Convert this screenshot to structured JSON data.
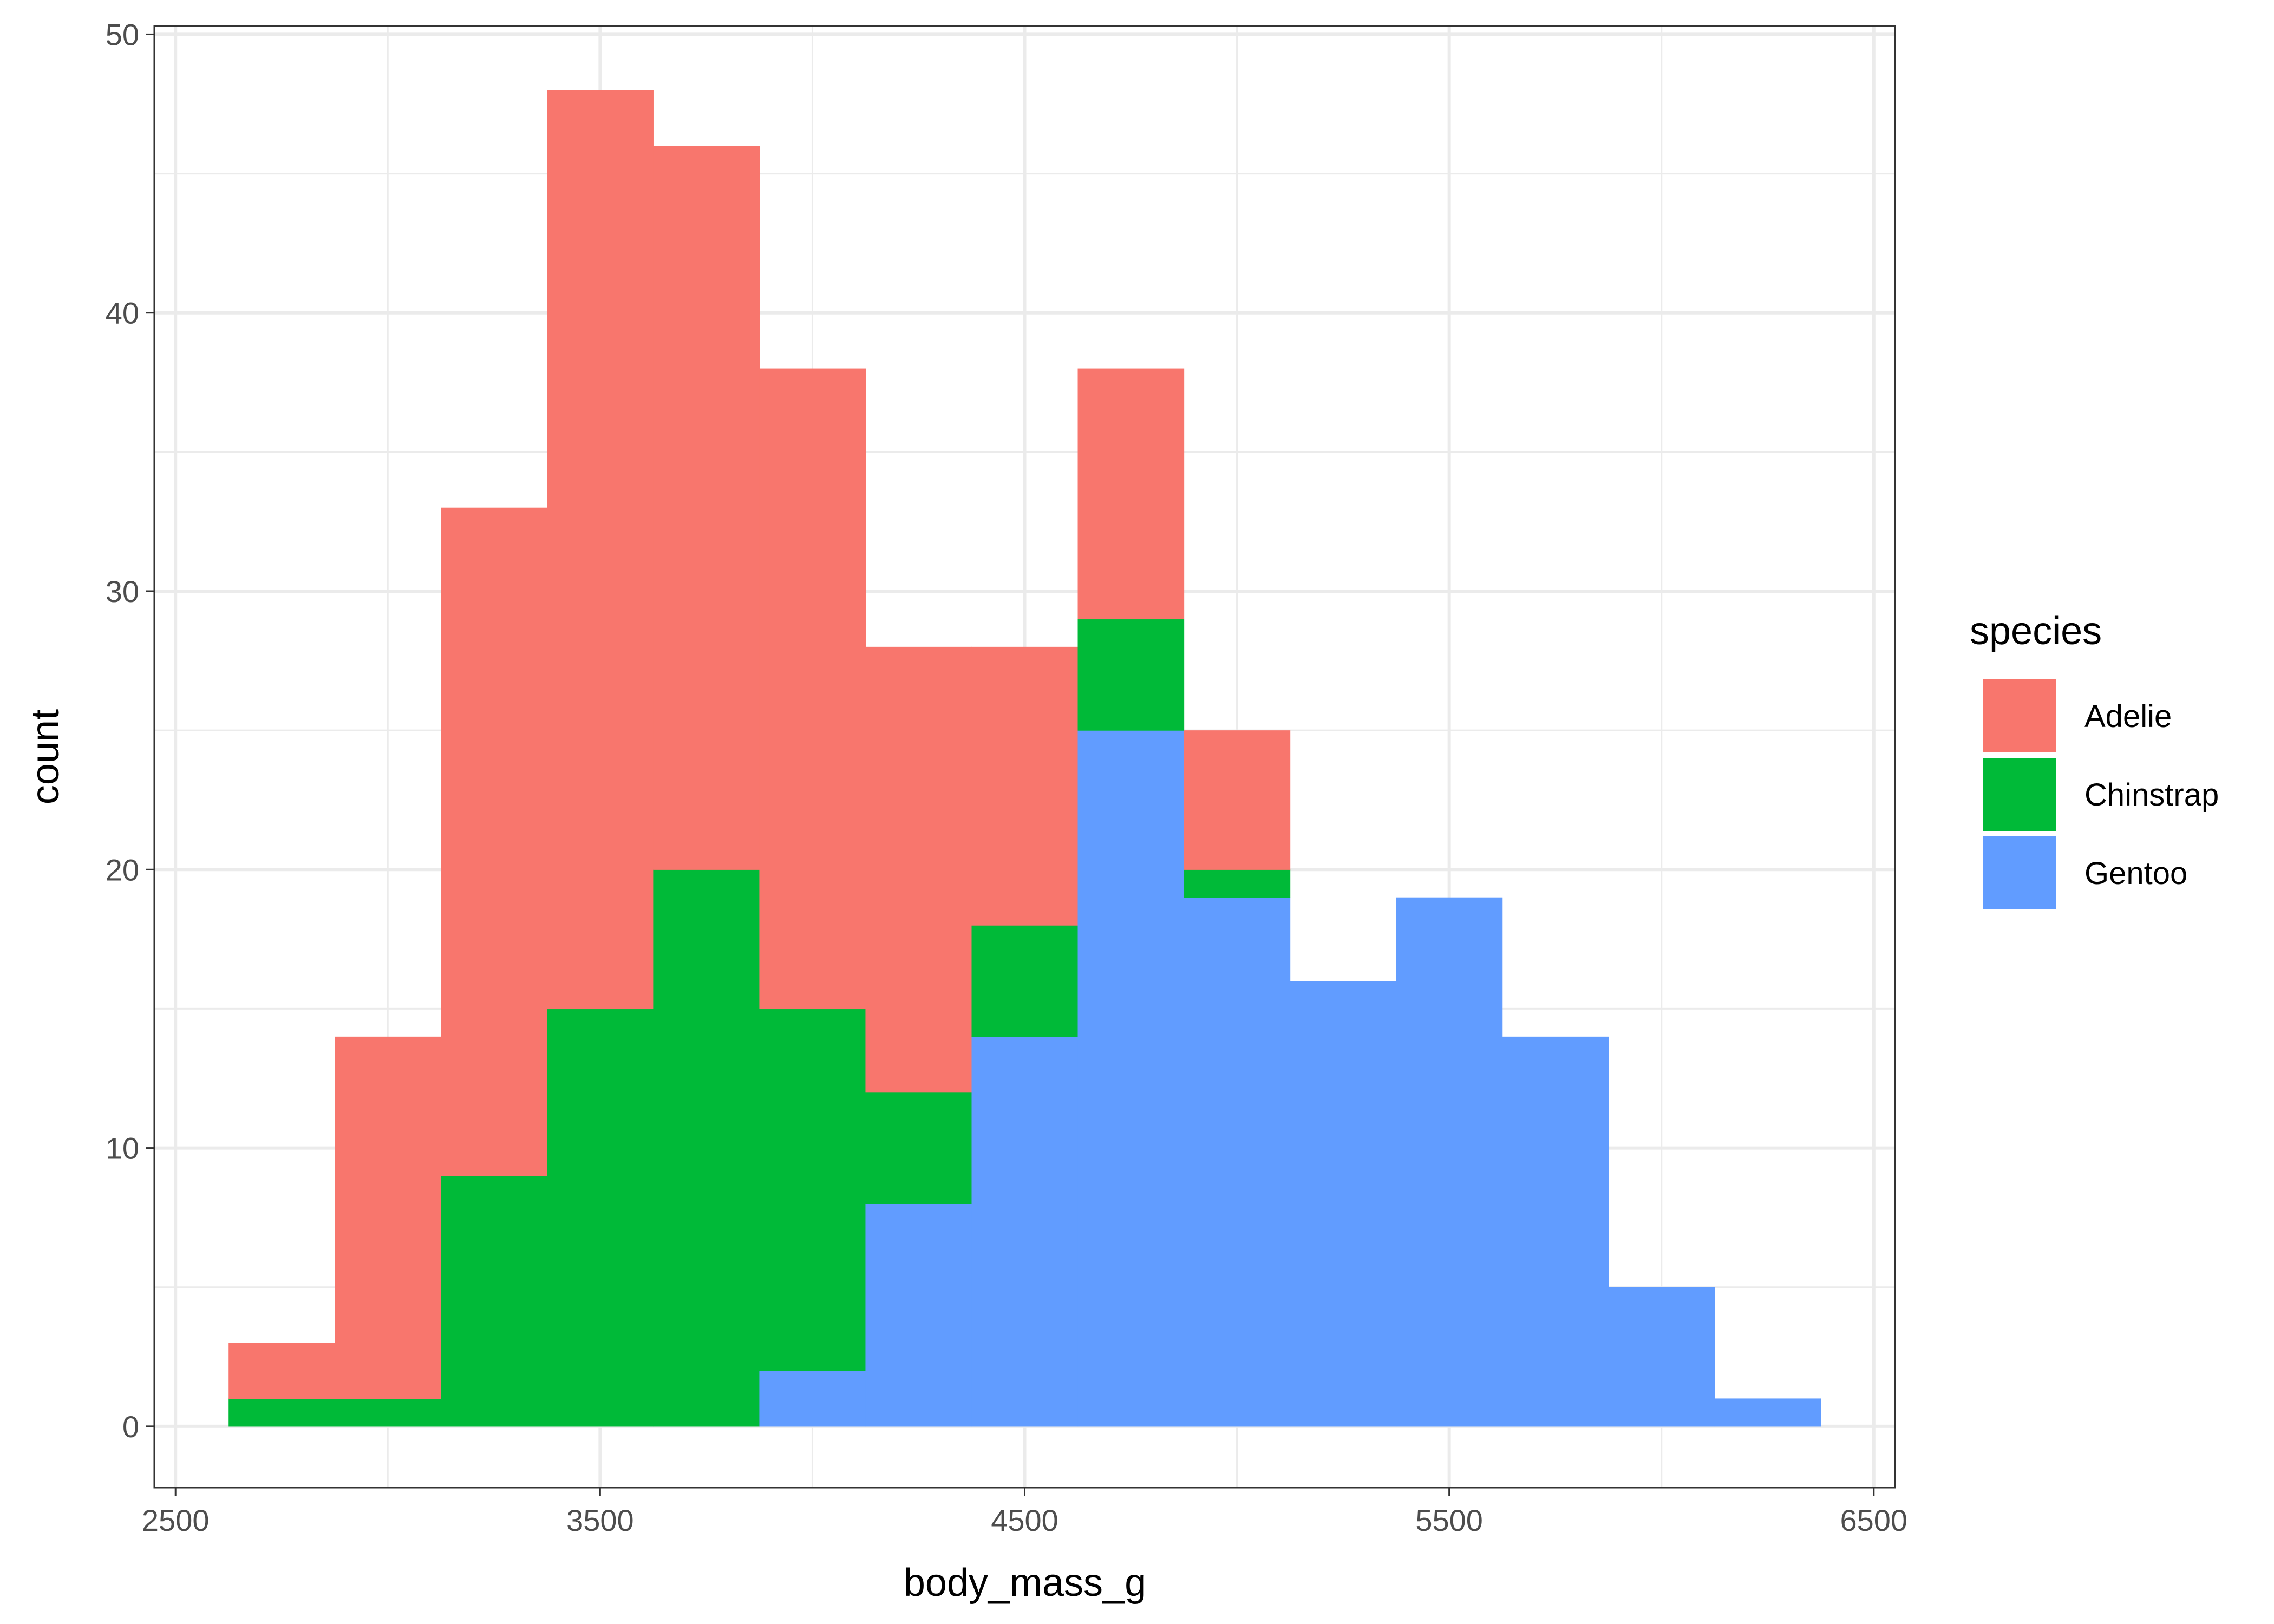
{
  "chart_data": {
    "type": "bar",
    "subtype": "stacked-histogram",
    "title": "",
    "xlabel": "body_mass_g",
    "ylabel": "count",
    "xlim": [
      2450,
      6550
    ],
    "ylim": [
      -2.2,
      50.3
    ],
    "xticks": [
      2500,
      3500,
      4500,
      5500,
      6500
    ],
    "yticks": [
      0,
      10,
      20,
      30,
      40,
      50
    ],
    "grid": true,
    "bin_edges": [
      2625,
      2875,
      3125,
      3375,
      3625,
      3875,
      4125,
      4375,
      4625,
      4875,
      5125,
      5375,
      5625,
      5875,
      6125,
      6375
    ],
    "stack_order_bottom_to_top": [
      "Gentoo",
      "Chinstrap",
      "Adelie"
    ],
    "legend": {
      "title": "species",
      "position": "right"
    },
    "series": [
      {
        "name": "Adelie",
        "color": "#F8766D",
        "values": [
          2,
          13,
          24,
          33,
          26,
          23,
          16,
          10,
          9,
          5,
          0,
          0,
          0,
          0,
          0
        ]
      },
      {
        "name": "Chinstrap",
        "color": "#00BA38",
        "values": [
          1,
          1,
          9,
          15,
          20,
          13,
          4,
          4,
          4,
          1,
          0,
          0,
          0,
          0,
          0
        ]
      },
      {
        "name": "Gentoo",
        "color": "#619CFF",
        "values": [
          0,
          0,
          0,
          0,
          0,
          2,
          8,
          14,
          25,
          19,
          16,
          19,
          14,
          5,
          1
        ]
      }
    ]
  }
}
